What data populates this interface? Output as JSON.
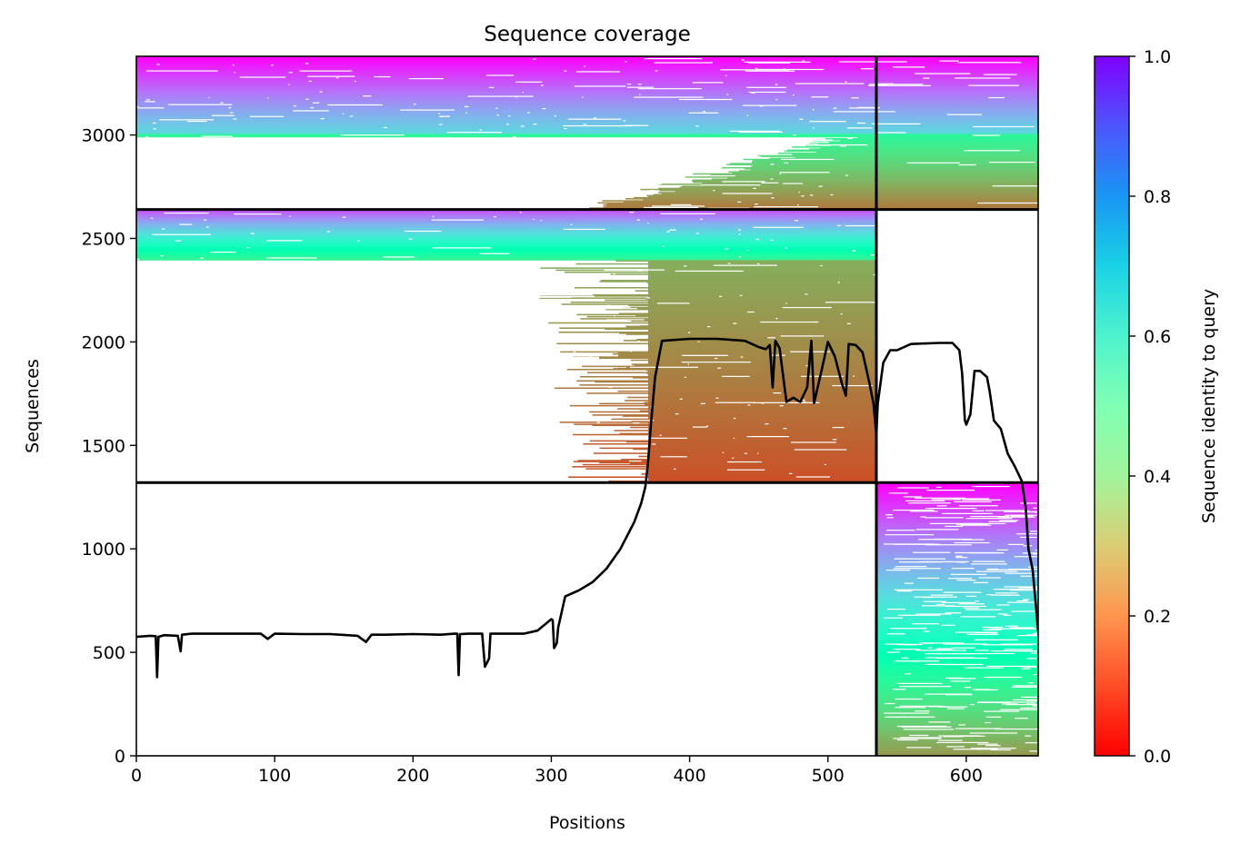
{
  "chart_data": {
    "type": "heatmap",
    "title": "Sequence coverage",
    "xlabel": "Positions",
    "ylabel": "Sequences",
    "xlim": [
      0,
      652
    ],
    "ylim": [
      0,
      3380
    ],
    "xticks": [
      0,
      100,
      200,
      300,
      400,
      500,
      600
    ],
    "yticks": [
      0,
      500,
      1000,
      1500,
      2000,
      2500,
      3000
    ],
    "colorbar": {
      "label": "Sequence identity to query",
      "range": [
        0.0,
        1.0
      ],
      "ticks": [
        "0.0",
        "0.2",
        "0.4",
        "0.6",
        "0.8",
        "1.0"
      ],
      "colormap": "rainbow_r"
    },
    "partitions": {
      "x_boundary": 535,
      "y_boundaries": [
        1320,
        2640
      ]
    },
    "blocks": [
      {
        "name": "top",
        "x_range": [
          0,
          652
        ],
        "seq_range": [
          2640,
          3380
        ],
        "identity_top": 1.0,
        "identity_bottom": 0.15,
        "full_width_down_to": 3010
      },
      {
        "name": "middle",
        "x_range": [
          0,
          535
        ],
        "seq_range": [
          1320,
          2640
        ],
        "identity_top": 0.9,
        "identity_bottom": 0.1,
        "full_width_down_to": 2400,
        "start_column": 370
      },
      {
        "name": "bottom-right",
        "x_range": [
          535,
          652
        ],
        "seq_range": [
          0,
          1320
        ],
        "identity_top": 1.0,
        "identity_bottom": 0.2
      }
    ],
    "series": [
      {
        "name": "",
        "x": [
          0,
          10,
          14,
          15,
          16,
          20,
          30,
          32,
          33,
          40,
          60,
          80,
          90,
          95,
          100,
          120,
          140,
          160,
          166,
          170,
          180,
          200,
          220,
          230,
          232,
          233,
          234,
          240,
          250,
          252,
          255,
          256,
          260,
          280,
          290,
          300,
          301,
          302,
          304,
          305,
          310,
          320,
          330,
          340,
          350,
          360,
          365,
          368,
          370,
          372,
          375,
          380,
          400,
          420,
          440,
          450,
          455,
          458,
          460,
          462,
          465,
          470,
          475,
          480,
          485,
          488,
          490,
          495,
          500,
          505,
          510,
          513,
          515,
          520,
          525,
          530,
          533,
          535,
          536,
          540,
          545,
          550,
          560,
          580,
          590,
          595,
          597,
          599,
          600,
          603,
          606,
          610,
          615,
          617,
          620,
          625,
          630,
          635,
          640,
          643,
          645,
          648,
          650,
          652
        ],
        "y": [
          575,
          580,
          578,
          380,
          575,
          583,
          580,
          505,
          585,
          590,
          590,
          590,
          590,
          565,
          590,
          588,
          588,
          580,
          550,
          585,
          585,
          588,
          585,
          590,
          590,
          390,
          588,
          590,
          590,
          430,
          470,
          590,
          590,
          590,
          605,
          660,
          655,
          520,
          545,
          620,
          770,
          800,
          840,
          905,
          1000,
          1130,
          1220,
          1300,
          1420,
          1600,
          1830,
          2005,
          2015,
          2015,
          2005,
          1975,
          1965,
          1985,
          1780,
          2005,
          1970,
          1710,
          1730,
          1710,
          1780,
          2005,
          1705,
          1850,
          2000,
          1930,
          1800,
          1740,
          1990,
          1985,
          1950,
          1800,
          1700,
          1550,
          1700,
          1900,
          1960,
          1960,
          1990,
          1995,
          1995,
          1960,
          1850,
          1620,
          1600,
          1650,
          1860,
          1860,
          1830,
          1760,
          1620,
          1580,
          1460,
          1400,
          1330,
          1200,
          1000,
          900,
          750,
          600
        ]
      }
    ]
  }
}
